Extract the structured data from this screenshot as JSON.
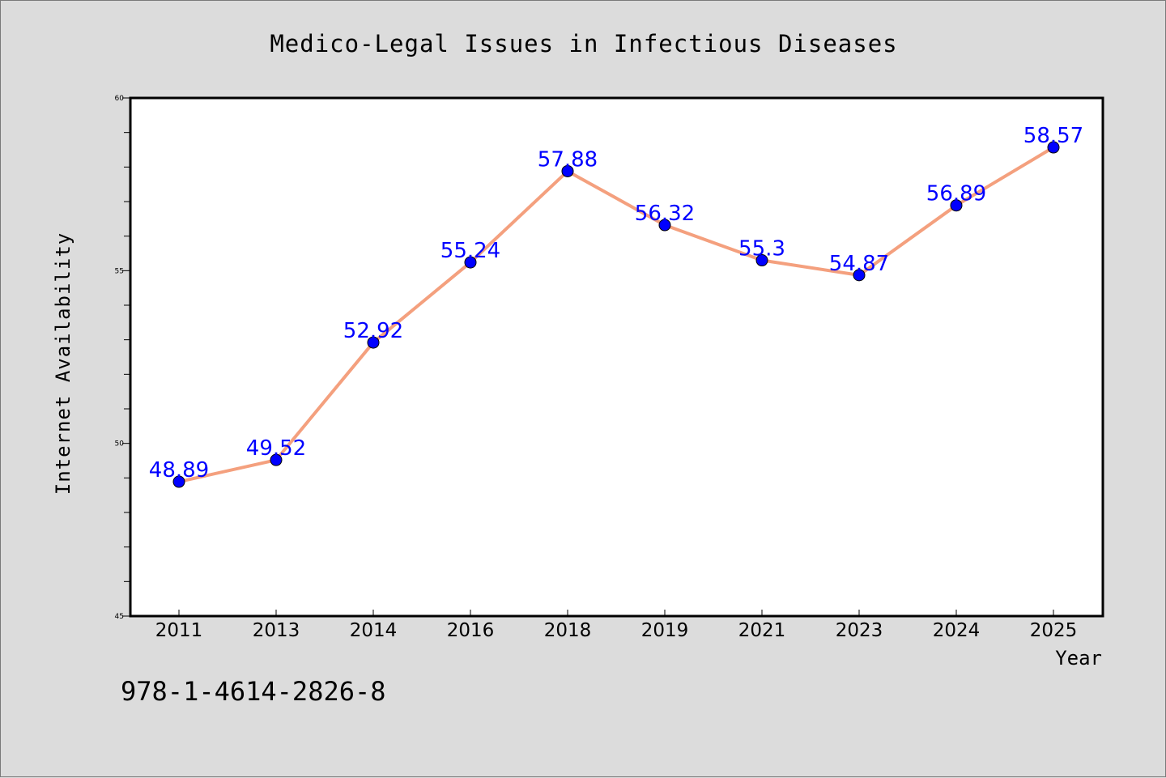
{
  "chart_data": {
    "type": "line",
    "title": "Medico-Legal Issues in Infectious Diseases",
    "xlabel": "Year",
    "ylabel": "Internet Availability",
    "categories": [
      "2011",
      "2013",
      "2014",
      "2016",
      "2018",
      "2019",
      "2021",
      "2023",
      "2024",
      "2025"
    ],
    "values": [
      48.89,
      49.52,
      52.92,
      55.24,
      57.88,
      56.32,
      55.3,
      54.87,
      56.89,
      58.57
    ],
    "data_labels": [
      "48.89",
      "49.52",
      "52.92",
      "55.24",
      "57.88",
      "56.32",
      "55.3",
      "54.87",
      "56.89",
      "58.57"
    ],
    "ylim": [
      45,
      60
    ],
    "yticks": [
      45,
      50,
      55,
      60
    ],
    "ytick_labels": [
      "45",
      "50",
      "55",
      "60"
    ],
    "grid": false,
    "line_color": "#f4a07e",
    "marker_color": "#0000ff",
    "label_color": "#0000ff",
    "background_color": "#dcdcdc",
    "plot_background_color": "#ffffff"
  },
  "footer": {
    "isbn": "978-1-4614-2826-8"
  }
}
